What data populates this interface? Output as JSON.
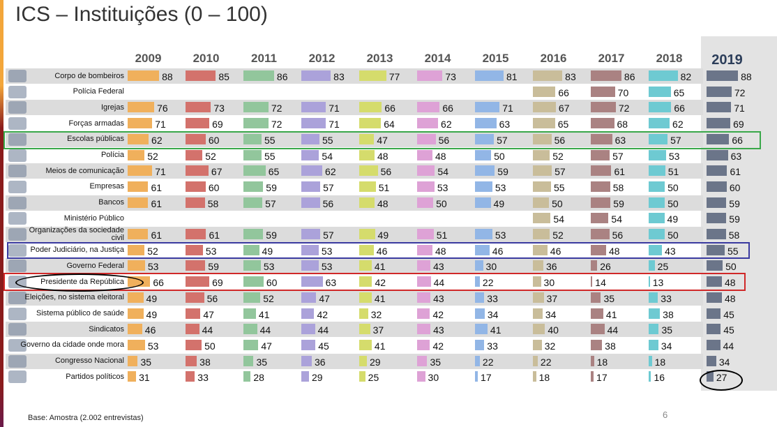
{
  "chart_data": {
    "type": "bar",
    "title": "ICS – Instituições (0 – 100)",
    "note": "Base: Amostra  (2.002 entrevistas)",
    "page_number": "6",
    "xlim": [
      10,
      100
    ],
    "categories": [
      "Corpo de bombeiros",
      "Polícia Federal",
      "Igrejas",
      "Forças armadas",
      "Escolas públicas",
      "Polícia",
      "Meios de comunicação",
      "Empresas",
      "Bancos",
      "Ministério Público",
      "Organizações da sociedade civil",
      "Poder Judiciário, na Justiça",
      "Governo Federal",
      "Presidente da República",
      "Eleições, no sistema eleitoral",
      "Sistema público de saúde",
      "Sindicatos",
      "Governo da cidade onde mora",
      "Congresso Nacional",
      "Partidos políticos"
    ],
    "series": [
      {
        "name": "2009",
        "color": "#f0b05c",
        "values": [
          88,
          null,
          76,
          71,
          62,
          52,
          71,
          61,
          61,
          null,
          61,
          52,
          53,
          66,
          49,
          49,
          46,
          53,
          35,
          31
        ]
      },
      {
        "name": "2010",
        "color": "#d3726c",
        "values": [
          85,
          null,
          73,
          69,
          60,
          52,
          67,
          60,
          58,
          null,
          61,
          53,
          59,
          69,
          56,
          47,
          44,
          50,
          38,
          33
        ]
      },
      {
        "name": "2011",
        "color": "#92c69c",
        "values": [
          86,
          null,
          72,
          72,
          55,
          55,
          65,
          59,
          57,
          null,
          59,
          49,
          53,
          60,
          52,
          41,
          44,
          47,
          35,
          28
        ]
      },
      {
        "name": "2012",
        "color": "#aba2da",
        "values": [
          83,
          null,
          71,
          71,
          55,
          54,
          62,
          57,
          56,
          null,
          57,
          53,
          53,
          63,
          47,
          42,
          44,
          45,
          36,
          29
        ]
      },
      {
        "name": "2013",
        "color": "#d5dc6c",
        "values": [
          77,
          null,
          66,
          64,
          47,
          48,
          56,
          51,
          48,
          null,
          49,
          46,
          41,
          42,
          41,
          32,
          37,
          41,
          29,
          25
        ]
      },
      {
        "name": "2014",
        "color": "#dea2d6",
        "values": [
          73,
          null,
          66,
          62,
          56,
          48,
          54,
          53,
          50,
          null,
          51,
          48,
          43,
          44,
          43,
          42,
          43,
          42,
          35,
          30
        ]
      },
      {
        "name": "2015",
        "color": "#92b6e6",
        "values": [
          81,
          null,
          71,
          63,
          57,
          50,
          59,
          53,
          49,
          null,
          53,
          46,
          30,
          22,
          33,
          34,
          41,
          33,
          22,
          17
        ]
      },
      {
        "name": "2016",
        "color": "#c9bd9a",
        "values": [
          83,
          66,
          67,
          65,
          56,
          52,
          57,
          55,
          50,
          54,
          52,
          46,
          36,
          30,
          37,
          34,
          40,
          32,
          22,
          18
        ]
      },
      {
        "name": "2017",
        "color": "#aa8282",
        "values": [
          86,
          70,
          72,
          68,
          63,
          57,
          61,
          58,
          59,
          54,
          56,
          48,
          26,
          14,
          35,
          41,
          44,
          38,
          18,
          17
        ]
      },
      {
        "name": "2018",
        "color": "#6ecad2",
        "values": [
          82,
          65,
          66,
          62,
          57,
          53,
          51,
          50,
          50,
          49,
          50,
          43,
          25,
          13,
          33,
          38,
          35,
          34,
          18,
          16
        ]
      },
      {
        "name": "2019",
        "color": "#6b7589",
        "values": [
          88,
          72,
          71,
          69,
          66,
          63,
          61,
          60,
          59,
          59,
          58,
          55,
          50,
          48,
          48,
          45,
          45,
          44,
          34,
          27
        ]
      }
    ]
  }
}
